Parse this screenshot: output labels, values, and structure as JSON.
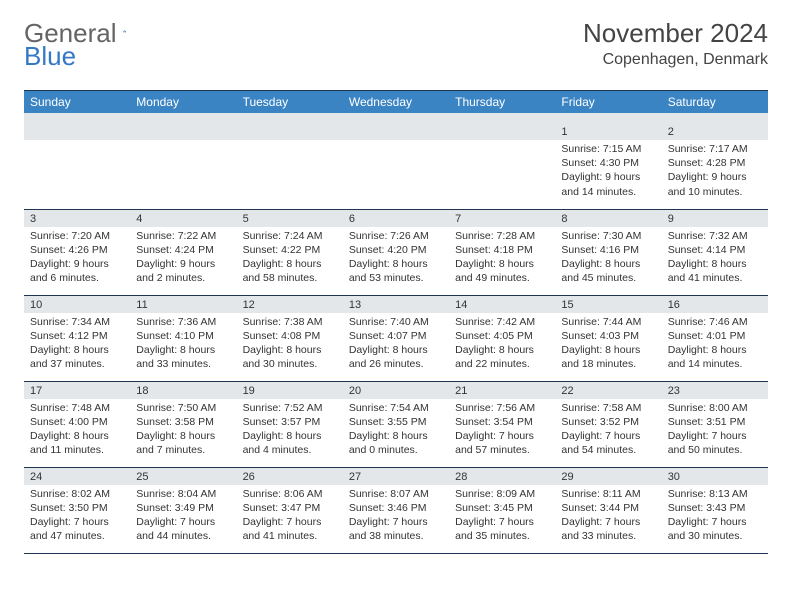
{
  "logo": {
    "general": "General",
    "blue": "Blue"
  },
  "title": "November 2024",
  "location": "Copenhagen, Denmark",
  "colors": {
    "header_bg": "#3b84c4",
    "spacer_bg": "#e4e7ea",
    "rule": "#1f3552",
    "logo_gray": "#646464",
    "logo_blue": "#3578c6"
  },
  "weekdays": [
    "Sunday",
    "Monday",
    "Tuesday",
    "Wednesday",
    "Thursday",
    "Friday",
    "Saturday"
  ],
  "weeks": [
    [
      null,
      null,
      null,
      null,
      null,
      {
        "n": "1",
        "sr": "7:15 AM",
        "ss": "4:30 PM",
        "dl": "9 hours and 14 minutes."
      },
      {
        "n": "2",
        "sr": "7:17 AM",
        "ss": "4:28 PM",
        "dl": "9 hours and 10 minutes."
      }
    ],
    [
      {
        "n": "3",
        "sr": "7:20 AM",
        "ss": "4:26 PM",
        "dl": "9 hours and 6 minutes."
      },
      {
        "n": "4",
        "sr": "7:22 AM",
        "ss": "4:24 PM",
        "dl": "9 hours and 2 minutes."
      },
      {
        "n": "5",
        "sr": "7:24 AM",
        "ss": "4:22 PM",
        "dl": "8 hours and 58 minutes."
      },
      {
        "n": "6",
        "sr": "7:26 AM",
        "ss": "4:20 PM",
        "dl": "8 hours and 53 minutes."
      },
      {
        "n": "7",
        "sr": "7:28 AM",
        "ss": "4:18 PM",
        "dl": "8 hours and 49 minutes."
      },
      {
        "n": "8",
        "sr": "7:30 AM",
        "ss": "4:16 PM",
        "dl": "8 hours and 45 minutes."
      },
      {
        "n": "9",
        "sr": "7:32 AM",
        "ss": "4:14 PM",
        "dl": "8 hours and 41 minutes."
      }
    ],
    [
      {
        "n": "10",
        "sr": "7:34 AM",
        "ss": "4:12 PM",
        "dl": "8 hours and 37 minutes."
      },
      {
        "n": "11",
        "sr": "7:36 AM",
        "ss": "4:10 PM",
        "dl": "8 hours and 33 minutes."
      },
      {
        "n": "12",
        "sr": "7:38 AM",
        "ss": "4:08 PM",
        "dl": "8 hours and 30 minutes."
      },
      {
        "n": "13",
        "sr": "7:40 AM",
        "ss": "4:07 PM",
        "dl": "8 hours and 26 minutes."
      },
      {
        "n": "14",
        "sr": "7:42 AM",
        "ss": "4:05 PM",
        "dl": "8 hours and 22 minutes."
      },
      {
        "n": "15",
        "sr": "7:44 AM",
        "ss": "4:03 PM",
        "dl": "8 hours and 18 minutes."
      },
      {
        "n": "16",
        "sr": "7:46 AM",
        "ss": "4:01 PM",
        "dl": "8 hours and 14 minutes."
      }
    ],
    [
      {
        "n": "17",
        "sr": "7:48 AM",
        "ss": "4:00 PM",
        "dl": "8 hours and 11 minutes."
      },
      {
        "n": "18",
        "sr": "7:50 AM",
        "ss": "3:58 PM",
        "dl": "8 hours and 7 minutes."
      },
      {
        "n": "19",
        "sr": "7:52 AM",
        "ss": "3:57 PM",
        "dl": "8 hours and 4 minutes."
      },
      {
        "n": "20",
        "sr": "7:54 AM",
        "ss": "3:55 PM",
        "dl": "8 hours and 0 minutes."
      },
      {
        "n": "21",
        "sr": "7:56 AM",
        "ss": "3:54 PM",
        "dl": "7 hours and 57 minutes."
      },
      {
        "n": "22",
        "sr": "7:58 AM",
        "ss": "3:52 PM",
        "dl": "7 hours and 54 minutes."
      },
      {
        "n": "23",
        "sr": "8:00 AM",
        "ss": "3:51 PM",
        "dl": "7 hours and 50 minutes."
      }
    ],
    [
      {
        "n": "24",
        "sr": "8:02 AM",
        "ss": "3:50 PM",
        "dl": "7 hours and 47 minutes."
      },
      {
        "n": "25",
        "sr": "8:04 AM",
        "ss": "3:49 PM",
        "dl": "7 hours and 44 minutes."
      },
      {
        "n": "26",
        "sr": "8:06 AM",
        "ss": "3:47 PM",
        "dl": "7 hours and 41 minutes."
      },
      {
        "n": "27",
        "sr": "8:07 AM",
        "ss": "3:46 PM",
        "dl": "7 hours and 38 minutes."
      },
      {
        "n": "28",
        "sr": "8:09 AM",
        "ss": "3:45 PM",
        "dl": "7 hours and 35 minutes."
      },
      {
        "n": "29",
        "sr": "8:11 AM",
        "ss": "3:44 PM",
        "dl": "7 hours and 33 minutes."
      },
      {
        "n": "30",
        "sr": "8:13 AM",
        "ss": "3:43 PM",
        "dl": "7 hours and 30 minutes."
      }
    ]
  ],
  "labels": {
    "sunrise": "Sunrise: ",
    "sunset": "Sunset: ",
    "daylight": "Daylight: "
  }
}
